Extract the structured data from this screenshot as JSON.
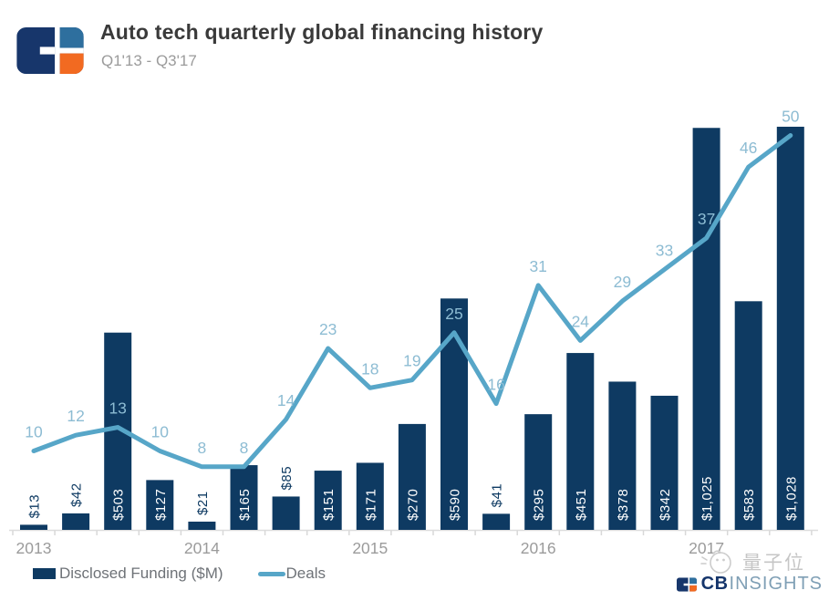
{
  "header": {
    "title": "Auto tech quarterly global financing history",
    "subtitle": "Q1'13 - Q3'17"
  },
  "chart_data": {
    "type": "bar+line",
    "title": "Auto tech quarterly global financing history",
    "subtitle_range": "Q1'13 - Q3'17",
    "x_year_ticks": [
      "2013",
      "2014",
      "2015",
      "2016",
      "2017"
    ],
    "quarters_per_year": 4,
    "num_points": 19,
    "grid": "off",
    "legend_position": "bottom-left",
    "series": [
      {
        "name": "Disclosed Funding ($M)",
        "type": "bar",
        "values": [
          13,
          42,
          503,
          127,
          21,
          165,
          85,
          151,
          171,
          270,
          590,
          41,
          295,
          451,
          378,
          342,
          1025,
          583,
          1028
        ],
        "labels": [
          "$13",
          "$42",
          "$503",
          "$127",
          "$21",
          "$165",
          "$85",
          "$151",
          "$171",
          "$270",
          "$590",
          "$41",
          "$295",
          "$451",
          "$378",
          "$342",
          "$1,025",
          "$583",
          "$1,028"
        ],
        "color": "#0e3a62",
        "label_color_inside": "#ffffff",
        "label_color_outside": "#0e3a62"
      },
      {
        "name": "Deals",
        "type": "line",
        "values": [
          10,
          12,
          13,
          10,
          8,
          8,
          14,
          23,
          18,
          19,
          25,
          16,
          31,
          24,
          29,
          33,
          37,
          46,
          50
        ],
        "color": "#57a6c8",
        "label_color": "#8dbcd3"
      }
    ],
    "axis_color": "#dcdcdc",
    "year_label_color": "#9b9b9b"
  },
  "legend": {
    "items": [
      {
        "label": "Disclosed Funding ($M)",
        "swatch": "bar"
      },
      {
        "label": "Deals",
        "swatch": "line"
      }
    ]
  },
  "footer": {
    "watermark_text": "量子位",
    "brand_cb": "CB",
    "brand_insights": "INSIGHTS"
  },
  "colors": {
    "bar": "#0e3a62",
    "line": "#57a6c8",
    "logo_navy": "#17366b",
    "logo_teal": "#2e6f9e",
    "logo_orange": "#f26a21"
  }
}
